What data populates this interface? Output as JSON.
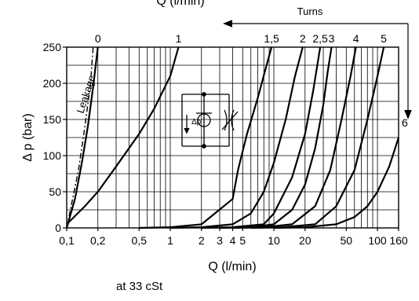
{
  "chart_data": {
    "type": "line",
    "top_title": "Q (l/min)",
    "xlabel": "Q (l/min)",
    "ylabel": "Δ p (bar)",
    "x_scale": "log",
    "xlim": [
      0.1,
      160
    ],
    "ylim": [
      0,
      250
    ],
    "x_ticks": [
      {
        "v": 0.1,
        "label": "0,1"
      },
      {
        "v": 0.2,
        "label": "0,2"
      },
      {
        "v": 0.5,
        "label": "0,5"
      },
      {
        "v": 1,
        "label": "1"
      },
      {
        "v": 2,
        "label": "2"
      },
      {
        "v": 3,
        "label": "3"
      },
      {
        "v": 4,
        "label": "4"
      },
      {
        "v": 5,
        "label": "5"
      },
      {
        "v": 10,
        "label": "10"
      },
      {
        "v": 20,
        "label": "20"
      },
      {
        "v": 50,
        "label": "50"
      },
      {
        "v": 100,
        "label": "100"
      },
      {
        "v": 160,
        "label": "160"
      }
    ],
    "y_ticks": [
      0,
      50,
      100,
      150,
      200,
      250
    ],
    "grid": true,
    "turns_label": "Turns",
    "leakage_label": "Leakage",
    "note": "at 33 cSt",
    "series": [
      {
        "name": "0",
        "x": [
          0.1,
          0.12,
          0.14,
          0.16,
          0.18,
          0.2
        ],
        "y": [
          0,
          40,
          90,
          140,
          195,
          250
        ]
      },
      {
        "name": "1",
        "x": [
          0.1,
          0.15,
          0.2,
          0.3,
          0.5,
          0.7,
          1,
          1.2
        ],
        "y": [
          5,
          30,
          50,
          85,
          130,
          165,
          210,
          250
        ]
      },
      {
        "name": "1,5",
        "x": [
          0.5,
          1,
          2,
          4,
          4.5,
          5.5,
          7,
          8.5,
          9.5
        ],
        "y": [
          0,
          1,
          5,
          40,
          80,
          130,
          180,
          225,
          250
        ]
      },
      {
        "name": "2",
        "x": [
          1,
          2,
          4,
          6,
          8,
          10,
          13,
          16,
          19
        ],
        "y": [
          0,
          1,
          5,
          20,
          50,
          90,
          150,
          210,
          250
        ]
      },
      {
        "name": "2,5",
        "x": [
          2,
          4,
          8,
          10,
          15,
          20,
          24,
          28
        ],
        "y": [
          0,
          1,
          5,
          20,
          70,
          130,
          190,
          250
        ]
      },
      {
        "name": "3",
        "x": [
          3,
          6,
          10,
          15,
          20,
          25,
          30,
          33,
          36
        ],
        "y": [
          0,
          1,
          5,
          25,
          60,
          110,
          170,
          215,
          250
        ]
      },
      {
        "name": "4",
        "x": [
          4,
          8,
          15,
          25,
          35,
          45,
          55,
          62
        ],
        "y": [
          0,
          1,
          5,
          30,
          80,
          150,
          210,
          250
        ]
      },
      {
        "name": "5",
        "x": [
          6,
          12,
          25,
          40,
          60,
          80,
          100,
          115
        ],
        "y": [
          0,
          1,
          5,
          30,
          80,
          150,
          210,
          250
        ]
      },
      {
        "name": "6",
        "x": [
          10,
          20,
          40,
          60,
          80,
          100,
          130,
          160
        ],
        "y": [
          0,
          1,
          5,
          15,
          30,
          50,
          85,
          125
        ]
      }
    ],
    "leakage": {
      "name": "Leakage",
      "x": [
        0.1,
        0.13,
        0.15,
        0.17,
        0.18
      ],
      "y": [
        0,
        80,
        140,
        200,
        250
      ]
    }
  }
}
